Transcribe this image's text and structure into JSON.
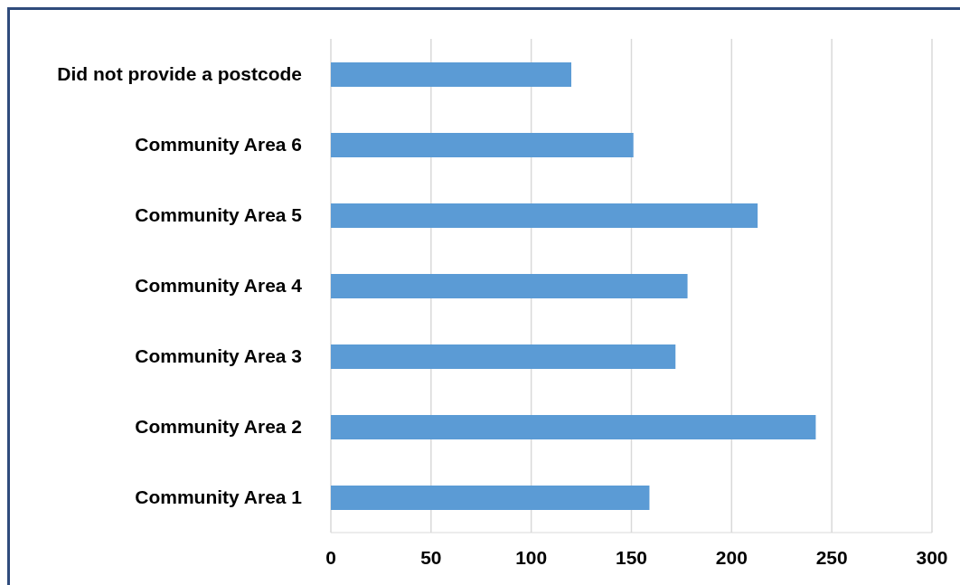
{
  "chart_data": {
    "type": "bar",
    "orientation": "horizontal",
    "categories": [
      "Did not provide a postcode",
      "Community Area 6",
      "Community Area 5",
      "Community Area 4",
      "Community Area 3",
      "Community Area 2",
      "Community Area 1"
    ],
    "values": [
      120,
      151,
      213,
      178,
      172,
      242,
      159
    ],
    "color": "#5b9bd5",
    "xlim": [
      0,
      300
    ],
    "xticks": [
      0,
      50,
      100,
      150,
      200,
      250,
      300
    ],
    "grid": "x"
  }
}
